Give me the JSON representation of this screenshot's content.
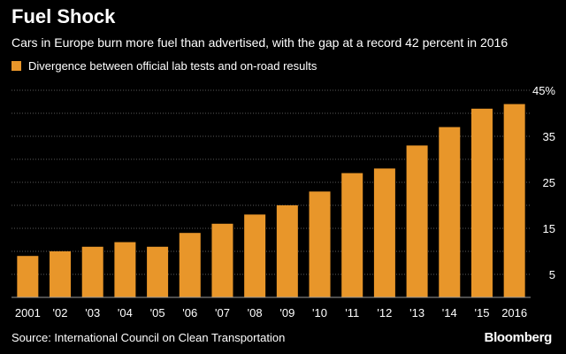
{
  "title": "Fuel Shock",
  "subtitle": "Cars in Europe burn more fuel than advertised, with the gap at a record 42 percent in 2016",
  "source": "Source: International Council on Clean Transportation",
  "brand": "Bloomberg",
  "colors": {
    "bar": "#E8962A",
    "background": "#000000",
    "grid": "#5a5a5a",
    "text": "#ffffff"
  },
  "chart_data": {
    "type": "bar",
    "title": "Fuel Shock",
    "subtitle": "Cars in Europe burn more fuel than advertised, with the gap at a record 42 percent in 2016",
    "xlabel": "",
    "ylabel": "",
    "categories": [
      "2001",
      "'02",
      "'03",
      "'04",
      "'05",
      "'06",
      "'07",
      "'08",
      "'09",
      "'10",
      "'11",
      "'12",
      "'13",
      "'14",
      "'15",
      "2016"
    ],
    "series": [
      {
        "name": "Divergence between official lab tests and on-road results",
        "values": [
          9,
          10,
          11,
          12,
          11,
          14,
          16,
          18,
          20,
          23,
          27,
          28,
          33,
          37,
          41,
          42
        ]
      }
    ],
    "yticks": [
      5,
      15,
      25,
      35,
      45
    ],
    "ytick_labels": [
      "5",
      "15",
      "25",
      "35",
      "45%"
    ],
    "ylim": [
      0,
      45
    ],
    "grid": true,
    "legend_position": "top-left"
  }
}
